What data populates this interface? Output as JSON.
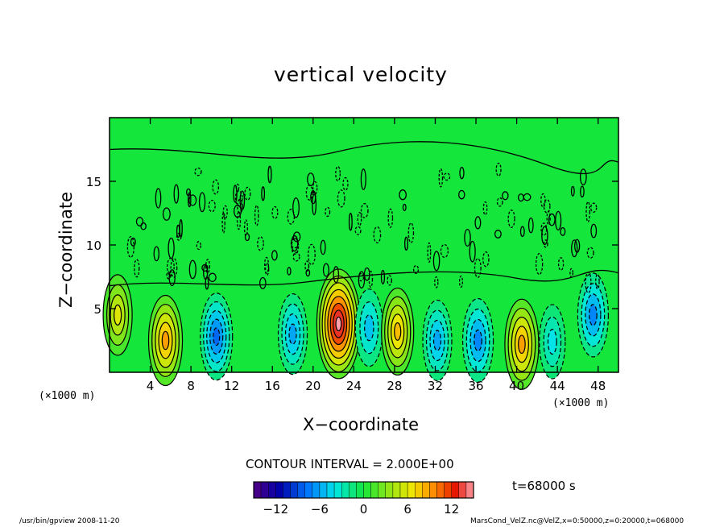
{
  "chart_data": {
    "type": "heatmap",
    "title": "vertical velocity",
    "xlabel": "X−coordinate",
    "ylabel": "Z−coordinate",
    "x_unit": "(×1000 m)",
    "xlim": [
      0,
      50
    ],
    "ylim": [
      0,
      20
    ],
    "x_ticks": [
      "4",
      "8",
      "12",
      "16",
      "20",
      "24",
      "28",
      "32",
      "36",
      "40",
      "44",
      "48"
    ],
    "y_ticks": [
      "5",
      "10",
      "15"
    ],
    "contour_interval_label": "CONTOUR INTERVAL = 2.000E+00",
    "time_label": "t=68000 s",
    "colorbar": {
      "min": -15,
      "max": 15,
      "tick_labels": [
        "−12",
        "−6",
        "0",
        "6",
        "12"
      ],
      "tick_values": [
        -12,
        -6,
        0,
        6,
        12
      ]
    },
    "features": [
      {
        "x": 0.8,
        "z": 4.5,
        "w": 6
      },
      {
        "x": 5.5,
        "z": 2.5,
        "w": 9
      },
      {
        "x": 10.5,
        "z": 2.8,
        "w": -8
      },
      {
        "x": 18.0,
        "z": 3.0,
        "w": -6
      },
      {
        "x": 22.5,
        "z": 3.8,
        "w": 15
      },
      {
        "x": 25.5,
        "z": 3.5,
        "w": -5
      },
      {
        "x": 28.3,
        "z": 3.2,
        "w": 8
      },
      {
        "x": 32.2,
        "z": 2.5,
        "w": -6
      },
      {
        "x": 36.2,
        "z": 2.5,
        "w": -7
      },
      {
        "x": 40.5,
        "z": 2.2,
        "w": 9
      },
      {
        "x": 43.5,
        "z": 2.4,
        "w": -4
      },
      {
        "x": 47.5,
        "z": 4.5,
        "w": -7
      }
    ]
  },
  "footer": {
    "left": "/usr/bin/gpview   2008-11-20",
    "right": "MarsCond_VelZ.nc@VelZ,x=0:50000,z=0:20000,t=068000"
  }
}
